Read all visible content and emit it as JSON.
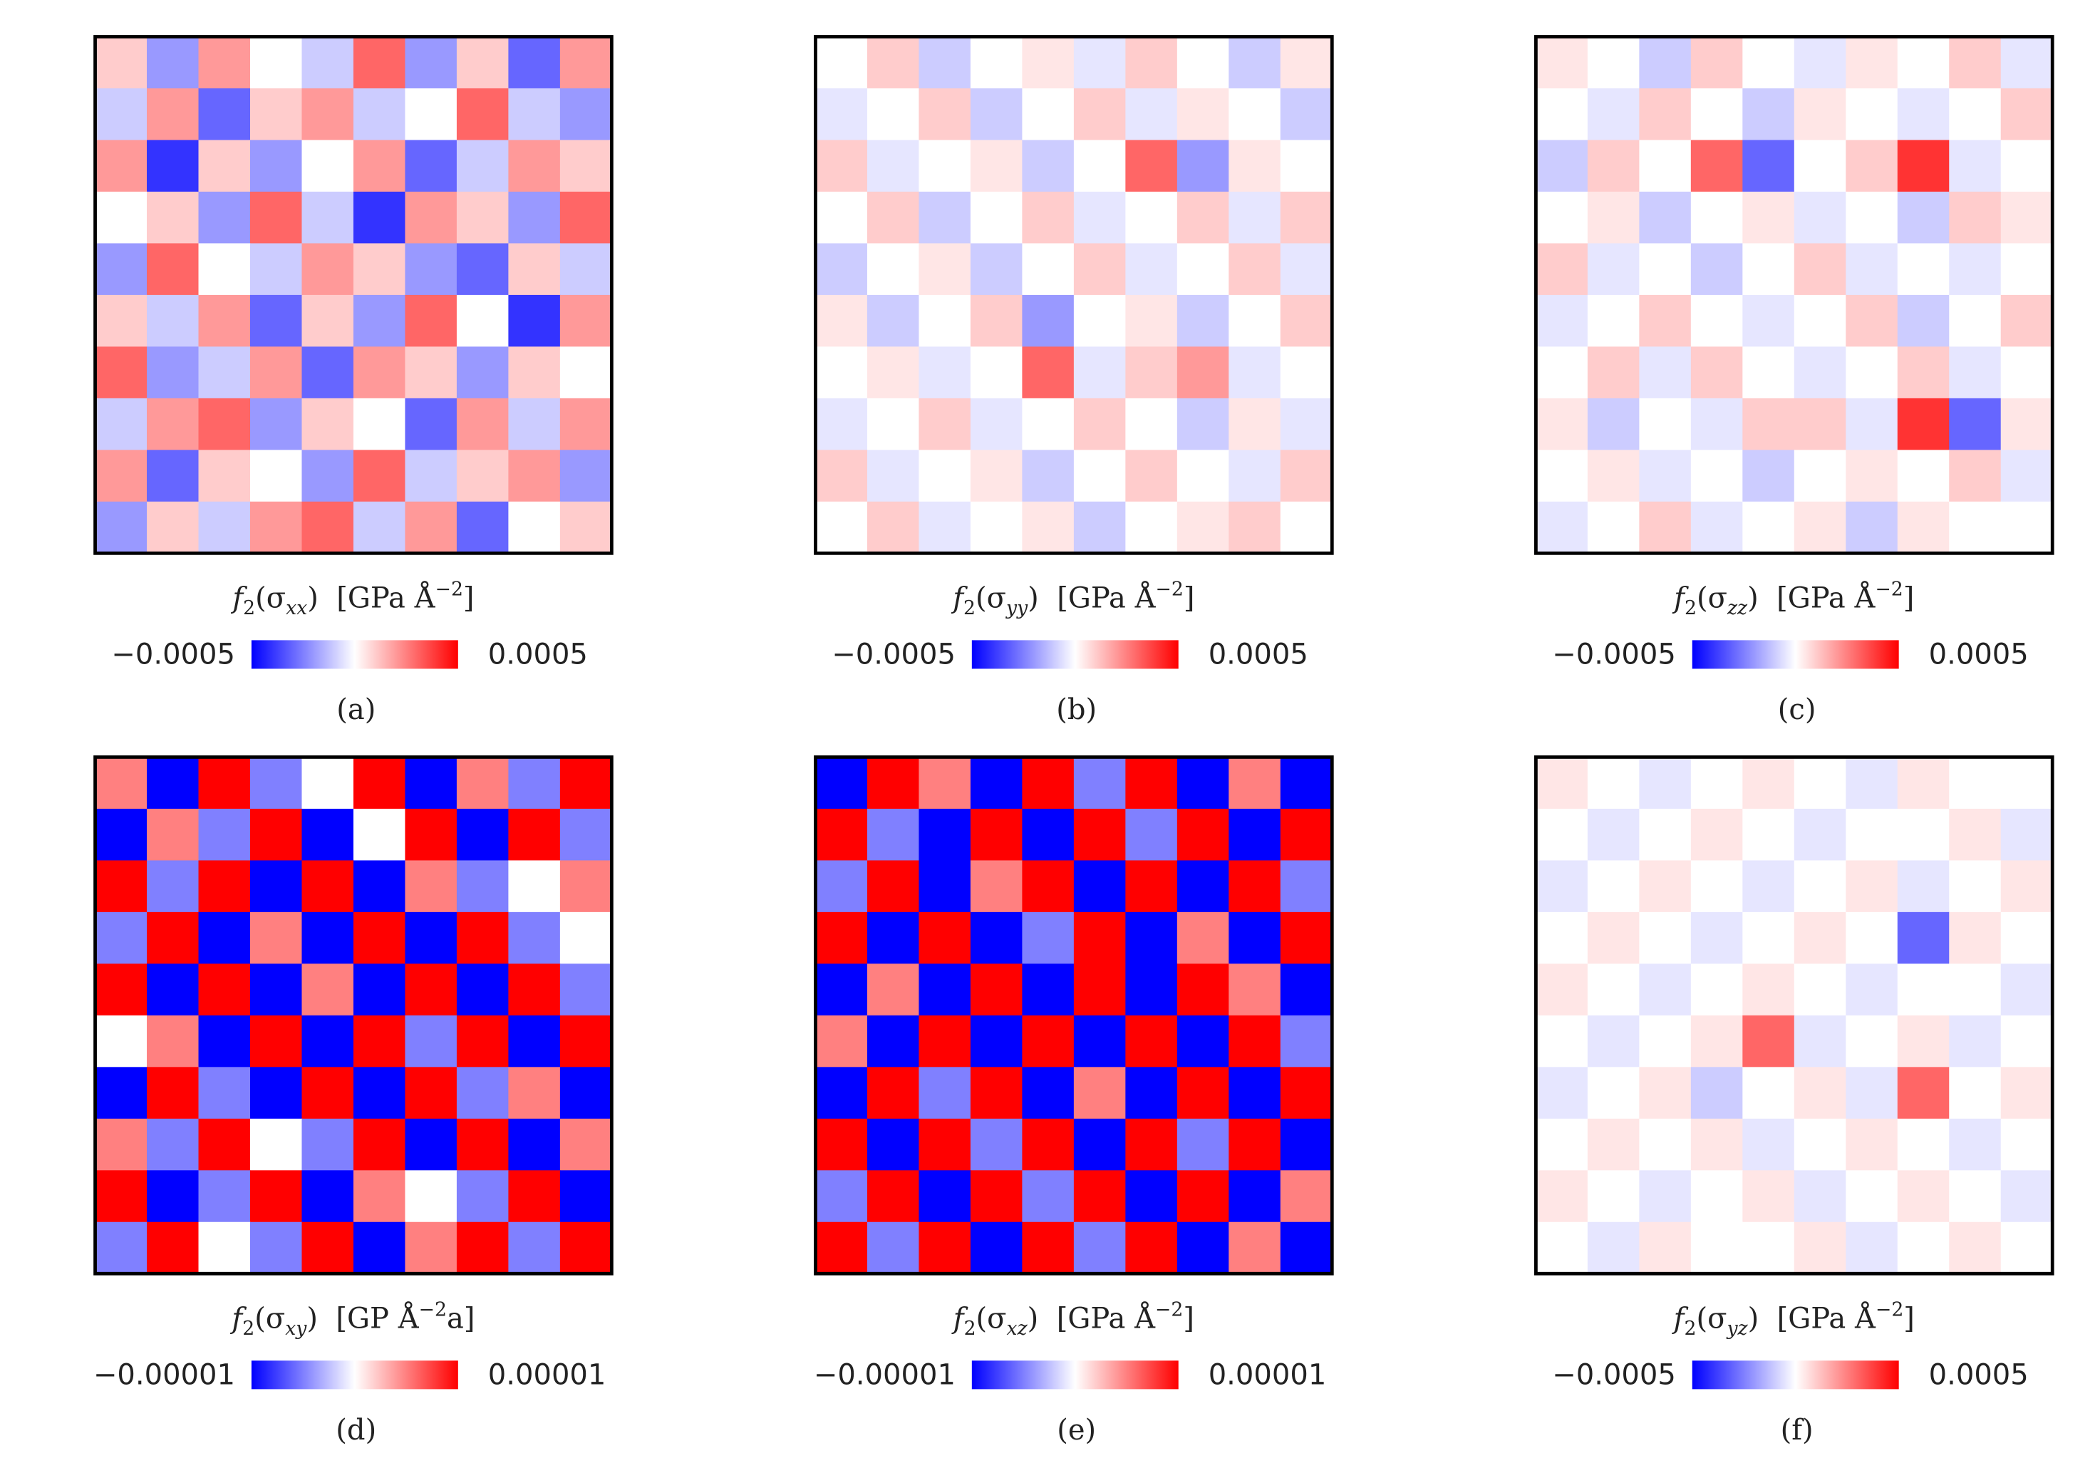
{
  "chart_data": [
    {
      "type": "heatmap",
      "cmap": "bwr",
      "label_parts": [
        "f",
        "2",
        "(σ",
        "xx",
        ")  [GPa Å",
        "−2",
        "]"
      ],
      "caption": "(a)",
      "clim": [
        -0.0005,
        0.0005
      ],
      "cticks": [
        {
          "value": -0.0005,
          "label": "−0.0005"
        },
        0.0005
      ],
      "z": [
        [
          0.0001,
          -0.0002,
          0.0002,
          0,
          -0.0001,
          0.0003,
          -0.0002,
          0.0001,
          -0.0003,
          0.0002
        ],
        [
          -0.0001,
          0.0002,
          -0.0003,
          0.0001,
          0.0002,
          -0.0001,
          0,
          0.0003,
          -0.0001,
          -0.0002
        ],
        [
          0.0002,
          -0.0004,
          0.0001,
          -0.0002,
          0,
          0.0002,
          -0.0003,
          -0.0001,
          0.0002,
          0.0001
        ],
        [
          0,
          0.0001,
          -0.0002,
          0.0003,
          -0.0001,
          -0.0004,
          0.0002,
          0.0001,
          -0.0002,
          0.0003
        ],
        [
          -0.0002,
          0.0003,
          0,
          -0.0001,
          0.0002,
          0.0001,
          -0.0002,
          -0.0003,
          0.0001,
          -0.0001
        ],
        [
          0.0001,
          -0.0001,
          0.0002,
          -0.0003,
          0.0001,
          -0.0002,
          0.0003,
          0,
          -0.0004,
          0.0002
        ],
        [
          0.0003,
          -0.0002,
          -0.0001,
          0.0002,
          -0.0003,
          0.0002,
          0.0001,
          -0.0002,
          0.0001,
          0
        ],
        [
          -0.0001,
          0.0002,
          0.0003,
          -0.0002,
          0.0001,
          0,
          -0.0003,
          0.0002,
          -0.0001,
          0.0002
        ],
        [
          0.0002,
          -0.0003,
          0.0001,
          0,
          -0.0002,
          0.0003,
          -0.0001,
          0.0001,
          0.0002,
          -0.0002
        ],
        [
          -0.0002,
          0.0001,
          -0.0001,
          0.0002,
          0.0003,
          -0.0001,
          0.0002,
          -0.0003,
          0,
          0.0001
        ]
      ]
    },
    {
      "type": "heatmap",
      "cmap": "bwr",
      "label_parts": [
        "f",
        "2",
        "(σ",
        "yy",
        ")  [GPa Å",
        "−2",
        "]"
      ],
      "caption": "(b)",
      "clim": [
        -0.0005,
        0.0005
      ],
      "cticks": [
        {
          "value": -0.0005,
          "label": "−0.0005"
        },
        0.0005
      ],
      "z": [
        [
          0,
          0.0001,
          -0.0001,
          0,
          5e-05,
          -5e-05,
          0.0001,
          0,
          -0.0001,
          5e-05
        ],
        [
          -5e-05,
          0,
          0.0001,
          -0.0001,
          0,
          0.0001,
          -5e-05,
          5e-05,
          0,
          -0.0001
        ],
        [
          0.0001,
          -5e-05,
          0,
          5e-05,
          -0.0001,
          0,
          0.0003,
          -0.0002,
          5e-05,
          0
        ],
        [
          0,
          0.0001,
          -0.0001,
          0,
          0.0001,
          -5e-05,
          0,
          0.0001,
          -5e-05,
          0.0001
        ],
        [
          -0.0001,
          0,
          5e-05,
          -0.0001,
          0,
          0.0001,
          -5e-05,
          0,
          0.0001,
          -5e-05
        ],
        [
          5e-05,
          -0.0001,
          0,
          0.0001,
          -0.0002,
          0,
          5e-05,
          -0.0001,
          0,
          0.0001
        ],
        [
          0,
          5e-05,
          -5e-05,
          0,
          0.0003,
          -5e-05,
          0.0001,
          0.0002,
          -5e-05,
          0
        ],
        [
          -5e-05,
          0,
          0.0001,
          -5e-05,
          0,
          0.0001,
          0,
          -0.0001,
          5e-05,
          -5e-05
        ],
        [
          0.0001,
          -5e-05,
          0,
          5e-05,
          -0.0001,
          0,
          0.0001,
          0,
          -5e-05,
          0.0001
        ],
        [
          0,
          0.0001,
          -5e-05,
          0,
          5e-05,
          -0.0001,
          0,
          5e-05,
          0.0001,
          0
        ]
      ]
    },
    {
      "type": "heatmap",
      "cmap": "bwr",
      "label_parts": [
        "f",
        "2",
        "(σ",
        "zz",
        ")  [GPa Å",
        "−2",
        "]"
      ],
      "caption": "(c)",
      "clim": [
        -0.0005,
        0.0005
      ],
      "cticks": [
        {
          "value": -0.0005,
          "label": "−0.0005"
        },
        0.0005
      ],
      "z": [
        [
          5e-05,
          0,
          -0.0001,
          0.0001,
          0,
          -5e-05,
          5e-05,
          0,
          0.0001,
          -5e-05
        ],
        [
          0,
          -5e-05,
          0.0001,
          0,
          -0.0001,
          5e-05,
          0,
          -5e-05,
          0,
          0.0001
        ],
        [
          -0.0001,
          0.0001,
          0,
          0.0003,
          -0.0003,
          0,
          0.0001,
          0.0004,
          -5e-05,
          0
        ],
        [
          0,
          5e-05,
          -0.0001,
          0,
          5e-05,
          -5e-05,
          0,
          -0.0001,
          0.0001,
          5e-05
        ],
        [
          0.0001,
          -5e-05,
          0,
          -0.0001,
          0,
          0.0001,
          -5e-05,
          0,
          -5e-05,
          0
        ],
        [
          -5e-05,
          0,
          0.0001,
          0,
          -5e-05,
          0,
          0.0001,
          -0.0001,
          0,
          0.0001
        ],
        [
          0,
          0.0001,
          -5e-05,
          0.0001,
          0,
          -5e-05,
          0,
          0.0001,
          -5e-05,
          0
        ],
        [
          5e-05,
          -0.0001,
          0,
          -5e-05,
          0.0001,
          0.0001,
          -5e-05,
          0.0004,
          -0.0003,
          5e-05
        ],
        [
          0,
          5e-05,
          -5e-05,
          0,
          -0.0001,
          0,
          5e-05,
          0,
          0.0001,
          -5e-05
        ],
        [
          -5e-05,
          0,
          0.0001,
          -5e-05,
          0,
          5e-05,
          -0.0001,
          5e-05,
          0,
          0
        ]
      ]
    },
    {
      "type": "heatmap",
      "cmap": "bwr",
      "label_parts": [
        "f",
        "2",
        "(σ",
        "xy",
        ")  [GP Å",
        "−2",
        "a]"
      ],
      "caption": "(d)",
      "clim": [
        -1e-05,
        1e-05
      ],
      "cticks": [
        {
          "value": -1e-05,
          "label": "−0.00001"
        },
        1e-05
      ],
      "z": [
        [
          5e-06,
          -1e-05,
          1e-05,
          -5e-06,
          0,
          1e-05,
          -1e-05,
          5e-06,
          -5e-06,
          1e-05
        ],
        [
          -1e-05,
          5e-06,
          -5e-06,
          1e-05,
          -1e-05,
          0,
          1e-05,
          -1e-05,
          1e-05,
          -5e-06
        ],
        [
          1e-05,
          -5e-06,
          1e-05,
          -1e-05,
          1e-05,
          -1e-05,
          5e-06,
          -5e-06,
          0,
          5e-06
        ],
        [
          -5e-06,
          1e-05,
          -1e-05,
          5e-06,
          -1e-05,
          1e-05,
          -1e-05,
          1e-05,
          -5e-06,
          0
        ],
        [
          1e-05,
          -1e-05,
          1e-05,
          -1e-05,
          5e-06,
          -1e-05,
          1e-05,
          -1e-05,
          1e-05,
          -5e-06
        ],
        [
          0,
          5e-06,
          -1e-05,
          1e-05,
          -1e-05,
          1e-05,
          -5e-06,
          1e-05,
          -1e-05,
          1e-05
        ],
        [
          -1e-05,
          1e-05,
          -5e-06,
          -1e-05,
          1e-05,
          -1e-05,
          1e-05,
          -5e-06,
          5e-06,
          -1e-05
        ],
        [
          5e-06,
          -5e-06,
          1e-05,
          0,
          -5e-06,
          1e-05,
          -1e-05,
          1e-05,
          -1e-05,
          5e-06
        ],
        [
          1e-05,
          -1e-05,
          -5e-06,
          1e-05,
          -1e-05,
          5e-06,
          0,
          -5e-06,
          1e-05,
          -1e-05
        ],
        [
          -5e-06,
          1e-05,
          0,
          -5e-06,
          1e-05,
          -1e-05,
          5e-06,
          1e-05,
          -5e-06,
          1e-05
        ]
      ]
    },
    {
      "type": "heatmap",
      "cmap": "bwr",
      "label_parts": [
        "f",
        "2",
        "(σ",
        "xz",
        ")  [GPa Å",
        "−2",
        "]"
      ],
      "caption": "(e)",
      "clim": [
        -1e-05,
        1e-05
      ],
      "cticks": [
        {
          "value": -1e-05,
          "label": "−0.00001"
        },
        1e-05
      ],
      "z": [
        [
          -1e-05,
          1e-05,
          5e-06,
          -1e-05,
          1e-05,
          -5e-06,
          1e-05,
          -1e-05,
          5e-06,
          -1e-05
        ],
        [
          1e-05,
          -5e-06,
          -1e-05,
          1e-05,
          -1e-05,
          1e-05,
          -5e-06,
          1e-05,
          -1e-05,
          1e-05
        ],
        [
          -5e-06,
          1e-05,
          -1e-05,
          5e-06,
          1e-05,
          -1e-05,
          1e-05,
          -1e-05,
          1e-05,
          -5e-06
        ],
        [
          1e-05,
          -1e-05,
          1e-05,
          -1e-05,
          -5e-06,
          1e-05,
          -1e-05,
          5e-06,
          -1e-05,
          1e-05
        ],
        [
          -1e-05,
          5e-06,
          -1e-05,
          1e-05,
          -1e-05,
          1e-05,
          -1e-05,
          1e-05,
          5e-06,
          -1e-05
        ],
        [
          5e-06,
          -1e-05,
          1e-05,
          -1e-05,
          1e-05,
          -1e-05,
          1e-05,
          -1e-05,
          1e-05,
          -5e-06
        ],
        [
          -1e-05,
          1e-05,
          -5e-06,
          1e-05,
          -1e-05,
          5e-06,
          -1e-05,
          1e-05,
          -1e-05,
          1e-05
        ],
        [
          1e-05,
          -1e-05,
          1e-05,
          -5e-06,
          1e-05,
          -1e-05,
          1e-05,
          -5e-06,
          1e-05,
          -1e-05
        ],
        [
          -5e-06,
          1e-05,
          -1e-05,
          1e-05,
          -5e-06,
          1e-05,
          -1e-05,
          1e-05,
          -1e-05,
          5e-06
        ],
        [
          1e-05,
          -5e-06,
          1e-05,
          -1e-05,
          1e-05,
          -5e-06,
          1e-05,
          -1e-05,
          5e-06,
          -1e-05
        ]
      ]
    },
    {
      "type": "heatmap",
      "cmap": "bwr",
      "label_parts": [
        "f",
        "2",
        "(σ",
        "yz",
        ")  [GPa Å",
        "−2",
        "]"
      ],
      "caption": "(f)",
      "clim": [
        -0.0005,
        0.0005
      ],
      "cticks": [
        {
          "value": -0.0005,
          "label": "−0.0005"
        },
        0.0005
      ],
      "z": [
        [
          5e-05,
          0,
          -5e-05,
          0,
          5e-05,
          0,
          -5e-05,
          5e-05,
          0,
          0
        ],
        [
          0,
          -5e-05,
          0,
          5e-05,
          0,
          -5e-05,
          0,
          0,
          5e-05,
          -5e-05
        ],
        [
          -5e-05,
          0,
          5e-05,
          0,
          -5e-05,
          0,
          5e-05,
          -5e-05,
          0,
          5e-05
        ],
        [
          0,
          5e-05,
          0,
          -5e-05,
          0,
          5e-05,
          0,
          -0.0003,
          5e-05,
          0
        ],
        [
          5e-05,
          0,
          -5e-05,
          0,
          5e-05,
          0,
          -5e-05,
          0,
          0,
          -5e-05
        ],
        [
          0,
          -5e-05,
          0,
          5e-05,
          0.0003,
          -5e-05,
          0,
          5e-05,
          -5e-05,
          0
        ],
        [
          -5e-05,
          0,
          5e-05,
          -0.0001,
          0,
          5e-05,
          -5e-05,
          0.0003,
          0,
          5e-05
        ],
        [
          0,
          5e-05,
          0,
          5e-05,
          -5e-05,
          0,
          5e-05,
          0,
          -5e-05,
          0
        ],
        [
          5e-05,
          0,
          -5e-05,
          0,
          5e-05,
          -5e-05,
          0,
          5e-05,
          0,
          -5e-05
        ],
        [
          0,
          -5e-05,
          5e-05,
          0,
          0,
          5e-05,
          -5e-05,
          0,
          5e-05,
          0
        ]
      ]
    }
  ]
}
